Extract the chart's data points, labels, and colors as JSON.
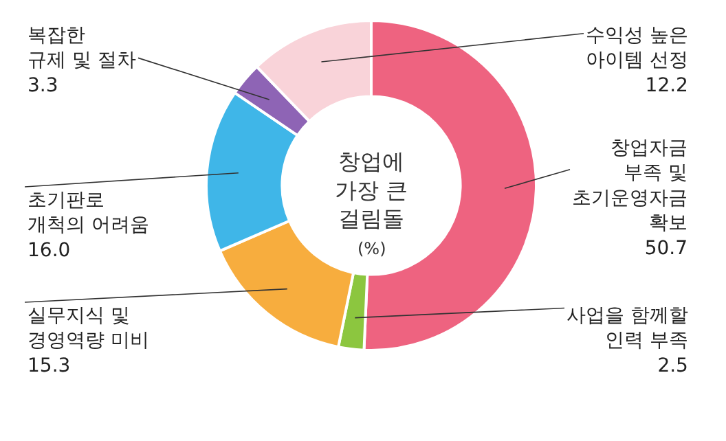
{
  "chart_data": {
    "type": "donut",
    "title": "창업에\n가장 큰\n걸림돌",
    "annotations": [
      "(%)"
    ],
    "categories": [
      "창업자금\n부족 및\n초기운영자금\n확보",
      "사업을 함께할\n인력 부족",
      "실무지식 및\n경영역량 미비",
      "초기판로\n개척의 어려움",
      "복잡한\n규제 및 절차",
      "수익성 높은\n아이템 선정"
    ],
    "values": [
      50.7,
      2.5,
      15.3,
      16.0,
      3.3,
      12.2
    ],
    "value_labels": [
      "50.7",
      "2.5",
      "15.3",
      "16.0",
      "3.3",
      "12.2"
    ],
    "colors": [
      "#ee6380",
      "#8cc63f",
      "#f7ad3e",
      "#3fb6e8",
      "#8e64b5",
      "#f9d3d9"
    ],
    "legend": false
  }
}
